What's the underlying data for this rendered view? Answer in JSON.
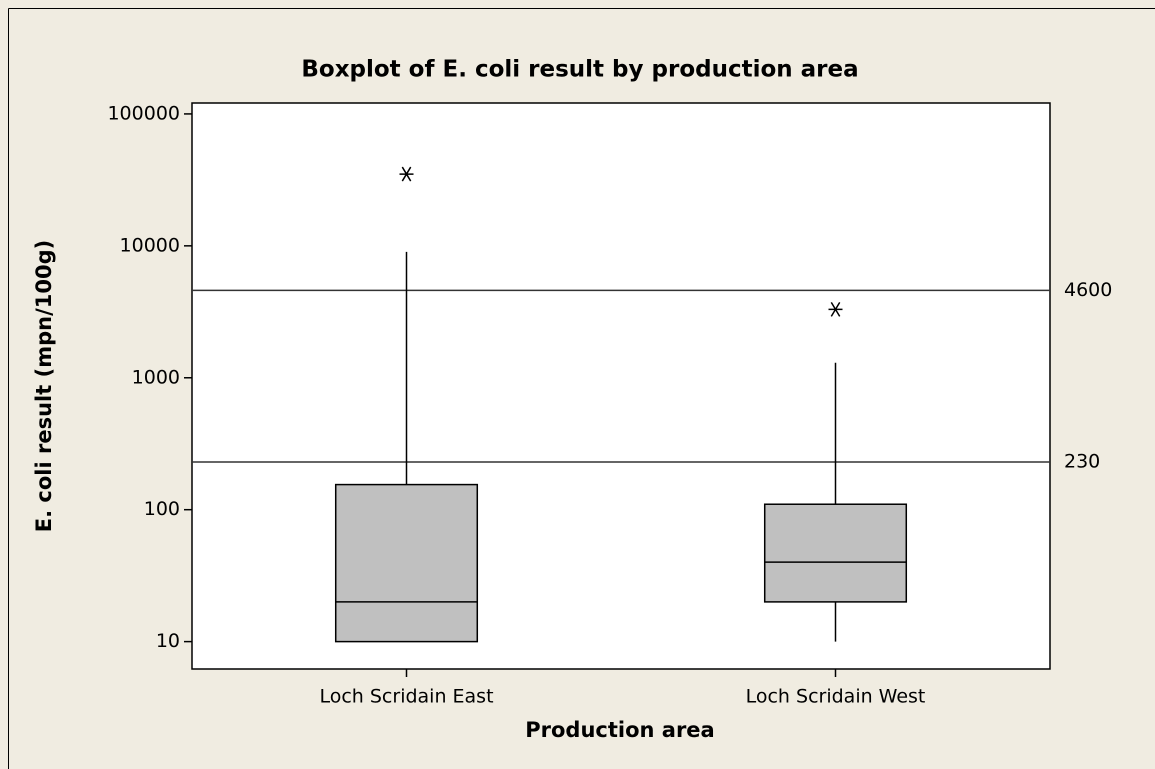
{
  "chart_data": {
    "type": "box",
    "title": "Boxplot of E. coli result by production area",
    "x_label": "Production area",
    "y_label": "E. coli result (mpn/100g)",
    "categories": [
      "Loch Scridain East",
      "Loch Scridain West"
    ],
    "boxes": [
      {
        "whisker_low": 10,
        "q1": 10,
        "median": 20,
        "q3": 155,
        "whisker_high": 9000,
        "outliers": [
          35000
        ]
      },
      {
        "whisker_low": 10,
        "q1": 20,
        "median": 40,
        "q3": 110,
        "whisker_high": 1300,
        "outliers": [
          3300
        ]
      }
    ],
    "color": "#c0c0c0",
    "log_y": true,
    "ylim": [
      6.2,
      121000
    ],
    "yticks": [
      10,
      100,
      1000,
      10000,
      100000
    ],
    "reference_lines": [
      4600,
      230
    ]
  }
}
